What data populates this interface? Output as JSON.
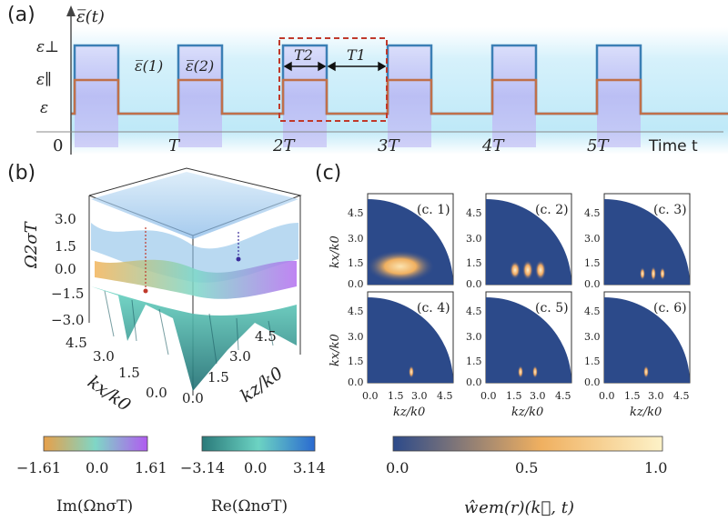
{
  "panel_a": {
    "label": "(a)",
    "y_axis_symbol": "ɛ̅̅(t)",
    "levels": [
      "ε⊥",
      "ε∥",
      "ε"
    ],
    "x_ticks": [
      "0",
      "T",
      "2T",
      "3T",
      "4T",
      "5T"
    ],
    "x_axis_label": "Time t",
    "tensor_1": "ɛ̅̅(1)",
    "tensor_2": "ɛ̅̅(2)",
    "duration_2": "T2",
    "duration_1": "T1",
    "colors": {
      "perp": "#3b7fb5",
      "par": "#c0704a",
      "frame": "#c0392b"
    }
  },
  "panel_b": {
    "label": "(b)",
    "z_label": "Ω2σT",
    "x_label": "kx/k0",
    "z_label_right": "kz/k0",
    "z_ticks": [
      "3.0",
      "1.5",
      "0.0",
      "−1.5",
      "−3.0"
    ],
    "kx_ticks": [
      "4.5",
      "3.0",
      "1.5",
      "0.0"
    ],
    "kz_ticks": [
      "0.0",
      "1.5",
      "3.0",
      "4.5"
    ]
  },
  "panel_c": {
    "label": "(c)",
    "subplots": [
      "(c. 1)",
      "(c. 2)",
      "(c. 3)",
      "(c. 4)",
      "(c. 5)",
      "(c. 6)"
    ],
    "y_label": "kx/k0",
    "x_label": "kz/k0",
    "y_ticks": [
      "4.5",
      "3.0",
      "1.5",
      "0.0"
    ],
    "x_ticks": [
      "0.0",
      "1.5",
      "3.0",
      "4.5"
    ]
  },
  "colorbars": [
    {
      "ticks": [
        "−1.61",
        "0.0",
        "1.61"
      ],
      "label": "Im(ΩnσT)"
    },
    {
      "ticks": [
        "−3.14",
        "0.0",
        "3.14"
      ],
      "label": "Re(ΩnσT)"
    },
    {
      "ticks": [
        "0.0",
        "0.5",
        "1.0"
      ],
      "label": "ŵem(r)(k⃗, t)"
    }
  ]
}
